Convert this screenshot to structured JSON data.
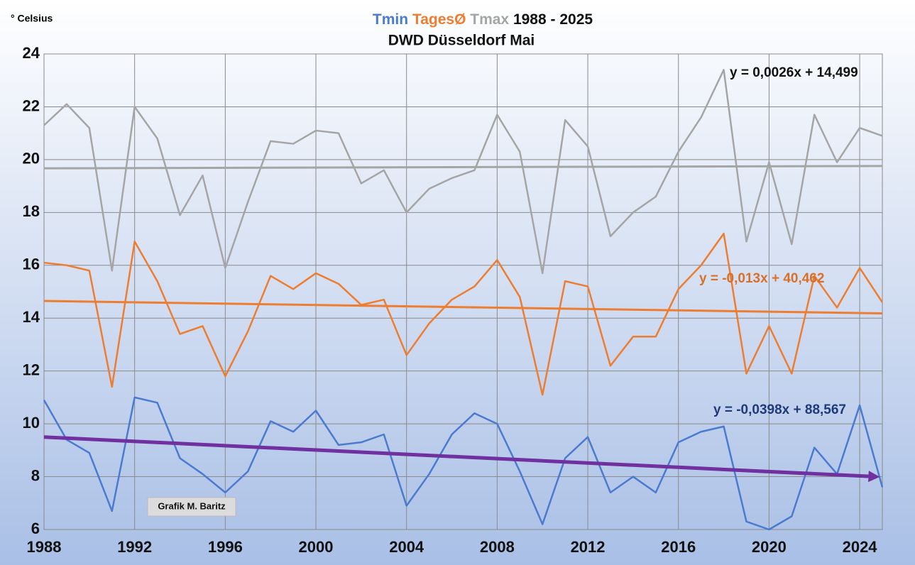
{
  "chart_data": {
    "type": "line",
    "title": "1988 - 2025",
    "subtitle": "DWD Düsseldorf Mai",
    "y_label": "° Celsius",
    "annotation": "Grafik M. Baritz",
    "x": [
      1988,
      1989,
      1990,
      1991,
      1992,
      1993,
      1994,
      1995,
      1996,
      1997,
      1998,
      1999,
      2000,
      2001,
      2002,
      2003,
      2004,
      2005,
      2006,
      2007,
      2008,
      2009,
      2010,
      2011,
      2012,
      2013,
      2014,
      2015,
      2016,
      2017,
      2018,
      2019,
      2020,
      2021,
      2022,
      2023,
      2024,
      2025
    ],
    "xlim": [
      1988,
      2025
    ],
    "xticks": [
      1988,
      1992,
      1996,
      2000,
      2004,
      2008,
      2012,
      2016,
      2020,
      2024
    ],
    "ylim": [
      6,
      24
    ],
    "yticks": [
      6,
      8,
      10,
      12,
      14,
      16,
      18,
      20,
      22,
      24
    ],
    "grid": true,
    "series": [
      {
        "name": "Tmin",
        "color": "#4a7bd0",
        "values": [
          10.9,
          9.4,
          8.9,
          6.7,
          11.0,
          10.8,
          8.7,
          8.1,
          7.4,
          8.2,
          10.1,
          9.7,
          10.5,
          9.2,
          9.3,
          9.6,
          6.9,
          8.1,
          9.6,
          10.4,
          10.0,
          8.2,
          6.2,
          8.7,
          9.5,
          7.4,
          8.0,
          7.4,
          9.3,
          9.7,
          9.9,
          6.3,
          6.0,
          6.5,
          9.1,
          8.1,
          10.7,
          7.6
        ],
        "trend": [
          9.5,
          8.0
        ],
        "trend_color": "#7030a0",
        "trend_label": "y = -0,0398x + 88,567",
        "trend_label_color": "#1f3a78"
      },
      {
        "name": "TagesØ",
        "color": "#ed7d31",
        "values": [
          16.1,
          16.0,
          15.8,
          11.4,
          16.9,
          15.4,
          13.4,
          13.7,
          11.8,
          13.5,
          15.6,
          15.1,
          15.7,
          15.3,
          14.5,
          14.7,
          12.6,
          13.8,
          14.7,
          15.2,
          16.2,
          14.8,
          11.1,
          15.4,
          15.2,
          12.2,
          13.3,
          13.3,
          15.1,
          16.0,
          17.2,
          11.9,
          13.7,
          11.9,
          15.6,
          14.4,
          15.9,
          14.6
        ],
        "trend": [
          14.65,
          14.18
        ],
        "trend_color": "#ed7d31",
        "trend_label": "y = -0,013x + 40,462",
        "trend_label_color": "#d9702a"
      },
      {
        "name": "Tmax",
        "color": "#a5a5a5",
        "values": [
          21.3,
          22.1,
          21.2,
          15.8,
          22.0,
          20.8,
          17.9,
          19.4,
          15.9,
          18.4,
          20.7,
          20.6,
          21.1,
          21.0,
          19.1,
          19.6,
          18.0,
          18.9,
          19.3,
          19.6,
          21.7,
          20.3,
          15.7,
          21.5,
          20.5,
          17.1,
          18.0,
          18.6,
          20.3,
          21.6,
          23.4,
          16.9,
          19.9,
          16.8,
          21.7,
          19.9,
          21.2,
          20.9
        ],
        "trend": [
          19.67,
          19.76
        ],
        "trend_color": "#a5a5a5",
        "trend_label": "y = 0,0026x + 14,499",
        "trend_label_color": "#111111"
      }
    ]
  }
}
